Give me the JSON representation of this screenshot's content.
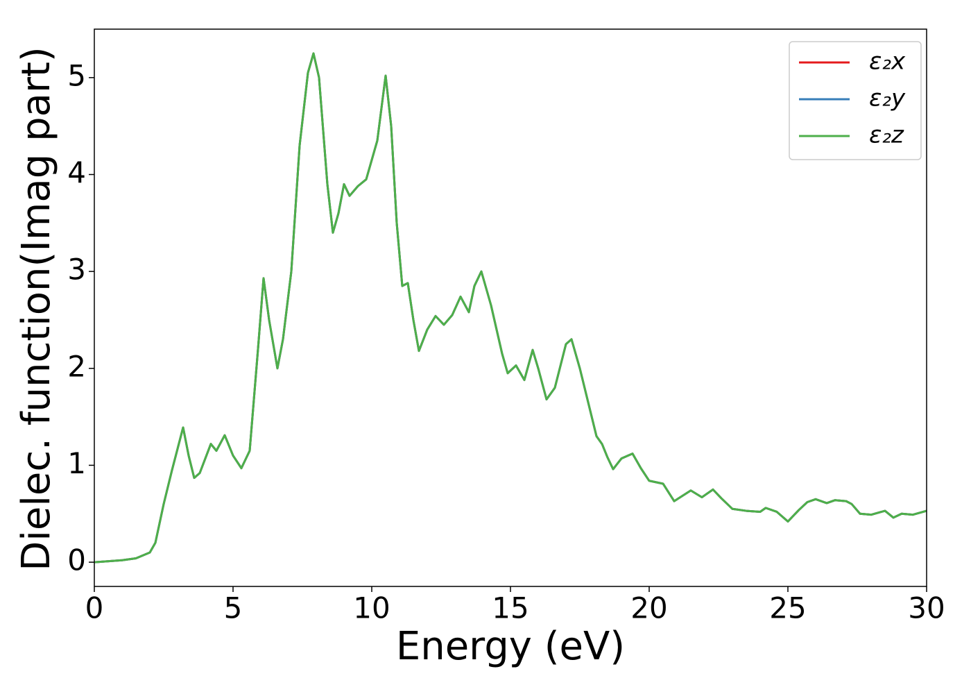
{
  "chart_data": {
    "type": "line",
    "xlabel": "Energy (eV)",
    "ylabel": "Dielec. function(Imag part)",
    "x": [
      0,
      1,
      1.5,
      2,
      2.2,
      2.5,
      2.8,
      3.2,
      3.4,
      3.6,
      3.8,
      4.2,
      4.4,
      4.7,
      5,
      5.3,
      5.6,
      5.9,
      6.1,
      6.3,
      6.6,
      6.8,
      7.1,
      7.4,
      7.7,
      7.9,
      8.1,
      8.4,
      8.6,
      8.8,
      9.0,
      9.2,
      9.5,
      9.8,
      10.2,
      10.5,
      10.7,
      10.9,
      11.1,
      11.3,
      11.5,
      11.7,
      12.0,
      12.3,
      12.6,
      12.9,
      13.2,
      13.5,
      13.7,
      13.95,
      14.3,
      14.7,
      14.9,
      15.2,
      15.5,
      15.8,
      16.0,
      16.3,
      16.6,
      17.0,
      17.2,
      17.5,
      17.8,
      18.1,
      18.3,
      18.5,
      18.7,
      19.0,
      19.4,
      19.7,
      20.0,
      20.5,
      20.9,
      21.5,
      21.9,
      22.3,
      22.6,
      23.0,
      23.5,
      24.0,
      24.2,
      24.6,
      25.0,
      25.4,
      25.7,
      26.0,
      26.4,
      26.7,
      27.1,
      27.3,
      27.6,
      28.0,
      28.5,
      28.8,
      29.1,
      29.5,
      30
    ],
    "series": [
      {
        "name": "ε₂x",
        "color": "#e41a1c",
        "values": [
          0,
          0.02,
          0.04,
          0.1,
          0.2,
          0.6,
          0.95,
          1.39,
          1.1,
          0.87,
          0.92,
          1.22,
          1.15,
          1.31,
          1.1,
          0.97,
          1.15,
          2.2,
          2.93,
          2.5,
          2.0,
          2.3,
          3.0,
          4.3,
          5.05,
          5.25,
          5.0,
          3.9,
          3.4,
          3.6,
          3.9,
          3.78,
          3.88,
          3.95,
          4.35,
          5.02,
          4.5,
          3.5,
          2.85,
          2.88,
          2.5,
          2.18,
          2.4,
          2.54,
          2.45,
          2.55,
          2.74,
          2.58,
          2.85,
          3.0,
          2.65,
          2.15,
          1.95,
          2.03,
          1.88,
          2.19,
          2.0,
          1.68,
          1.8,
          2.25,
          2.3,
          2.0,
          1.65,
          1.3,
          1.22,
          1.08,
          0.96,
          1.07,
          1.12,
          0.97,
          0.84,
          0.81,
          0.63,
          0.74,
          0.67,
          0.75,
          0.66,
          0.55,
          0.53,
          0.52,
          0.56,
          0.52,
          0.42,
          0.54,
          0.62,
          0.65,
          0.61,
          0.64,
          0.63,
          0.6,
          0.5,
          0.49,
          0.53,
          0.46,
          0.5,
          0.49,
          0.53
        ]
      },
      {
        "name": "ε₂y",
        "color": "#377eb8",
        "values": [
          0,
          0.02,
          0.04,
          0.1,
          0.2,
          0.6,
          0.95,
          1.39,
          1.1,
          0.87,
          0.92,
          1.22,
          1.15,
          1.31,
          1.1,
          0.97,
          1.15,
          2.2,
          2.93,
          2.5,
          2.0,
          2.3,
          3.0,
          4.3,
          5.05,
          5.25,
          5.0,
          3.9,
          3.4,
          3.6,
          3.9,
          3.78,
          3.88,
          3.95,
          4.35,
          5.02,
          4.5,
          3.5,
          2.85,
          2.88,
          2.5,
          2.18,
          2.4,
          2.54,
          2.45,
          2.55,
          2.74,
          2.58,
          2.85,
          3.0,
          2.65,
          2.15,
          1.95,
          2.03,
          1.88,
          2.19,
          2.0,
          1.68,
          1.8,
          2.25,
          2.3,
          2.0,
          1.65,
          1.3,
          1.22,
          1.08,
          0.96,
          1.07,
          1.12,
          0.97,
          0.84,
          0.81,
          0.63,
          0.74,
          0.67,
          0.75,
          0.66,
          0.55,
          0.53,
          0.52,
          0.56,
          0.52,
          0.42,
          0.54,
          0.62,
          0.65,
          0.61,
          0.64,
          0.63,
          0.6,
          0.5,
          0.49,
          0.53,
          0.46,
          0.5,
          0.49,
          0.53
        ]
      },
      {
        "name": "ε₂z",
        "color": "#4daf4a",
        "values": [
          0,
          0.02,
          0.04,
          0.1,
          0.2,
          0.6,
          0.95,
          1.39,
          1.1,
          0.87,
          0.92,
          1.22,
          1.15,
          1.31,
          1.1,
          0.97,
          1.15,
          2.2,
          2.93,
          2.5,
          2.0,
          2.3,
          3.0,
          4.3,
          5.05,
          5.25,
          5.0,
          3.9,
          3.4,
          3.6,
          3.9,
          3.78,
          3.88,
          3.95,
          4.35,
          5.02,
          4.5,
          3.5,
          2.85,
          2.88,
          2.5,
          2.18,
          2.4,
          2.54,
          2.45,
          2.55,
          2.74,
          2.58,
          2.85,
          3.0,
          2.65,
          2.15,
          1.95,
          2.03,
          1.88,
          2.19,
          2.0,
          1.68,
          1.8,
          2.25,
          2.3,
          2.0,
          1.65,
          1.3,
          1.22,
          1.08,
          0.96,
          1.07,
          1.12,
          0.97,
          0.84,
          0.81,
          0.63,
          0.74,
          0.67,
          0.75,
          0.66,
          0.55,
          0.53,
          0.52,
          0.56,
          0.52,
          0.42,
          0.54,
          0.62,
          0.65,
          0.61,
          0.64,
          0.63,
          0.6,
          0.5,
          0.49,
          0.53,
          0.46,
          0.5,
          0.49,
          0.53
        ]
      }
    ],
    "xlim": [
      0,
      30
    ],
    "xticks": [
      0,
      5,
      10,
      15,
      20,
      25,
      30
    ],
    "ylim": [
      -0.25,
      5.5
    ],
    "yticks": [
      0,
      1,
      2,
      3,
      4,
      5
    ],
    "grid": false,
    "legend": "upper right"
  }
}
